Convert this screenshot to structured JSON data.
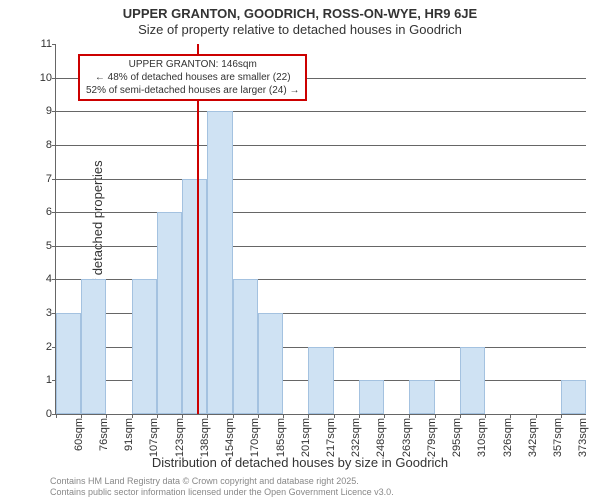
{
  "titles": {
    "main": "UPPER GRANTON, GOODRICH, ROSS-ON-WYE, HR9 6JE",
    "sub": "Size of property relative to detached houses in Goodrich"
  },
  "axes": {
    "ylabel": "Number of detached properties",
    "xlabel": "Distribution of detached houses by size in Goodrich",
    "ylim": [
      0,
      11
    ],
    "ytick_step": 1,
    "label_fontsize": 13,
    "tick_fontsize": 11
  },
  "chart": {
    "type": "histogram",
    "categories": [
      "60sqm",
      "76sqm",
      "91sqm",
      "107sqm",
      "123sqm",
      "138sqm",
      "154sqm",
      "170sqm",
      "185sqm",
      "201sqm",
      "217sqm",
      "232sqm",
      "248sqm",
      "263sqm",
      "279sqm",
      "295sqm",
      "310sqm",
      "326sqm",
      "342sqm",
      "357sqm",
      "373sqm"
    ],
    "values": [
      3,
      4,
      0,
      4,
      6,
      7,
      9,
      4,
      3,
      0,
      2,
      0,
      1,
      0,
      1,
      0,
      2,
      0,
      0,
      0,
      1
    ],
    "bar_fill": "#cfe2f3",
    "bar_border": "#a4c2e0",
    "background_color": "#ffffff",
    "grid_color": "#666666"
  },
  "marker": {
    "color": "#cc0000",
    "position_index": 5.6,
    "annotation": {
      "line1": "UPPER GRANTON: 146sqm",
      "line2": "← 48% of detached houses are smaller (22)",
      "line3": "52% of semi-detached houses are larger (24) →"
    }
  },
  "footer": {
    "line1": "Contains HM Land Registry data © Crown copyright and database right 2025.",
    "line2": "Contains public sector information licensed under the Open Government Licence v3.0."
  }
}
